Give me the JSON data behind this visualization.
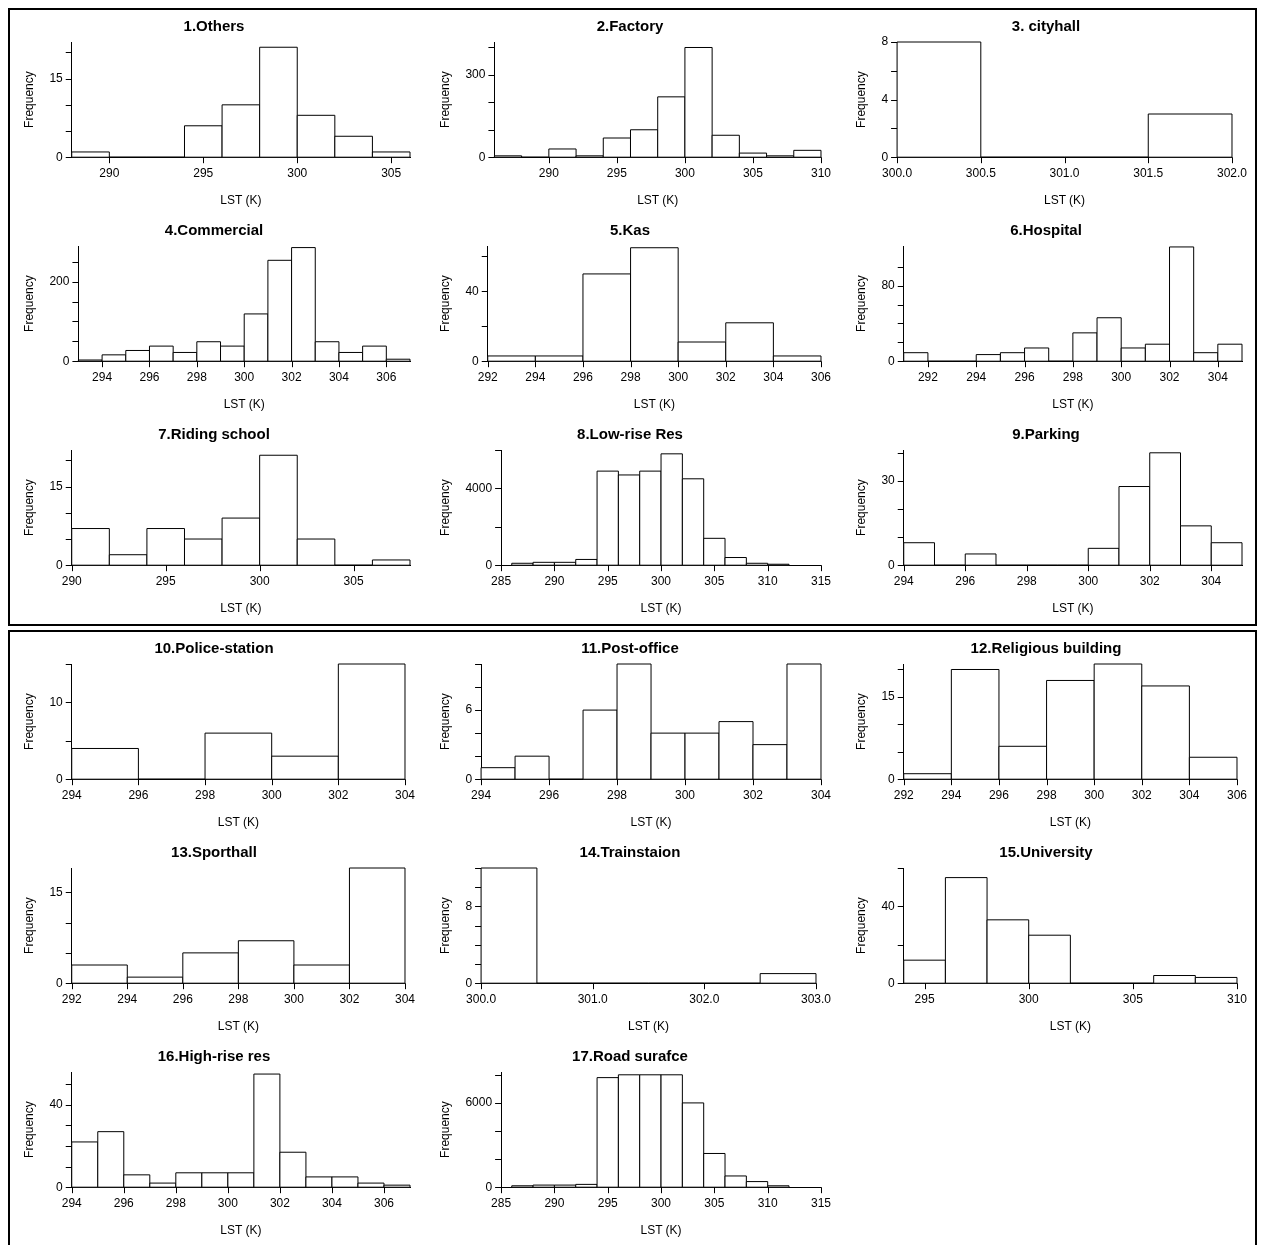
{
  "chart_data": [
    {
      "type": "histogram",
      "title": "1.Others",
      "xlabel": "LST (K)",
      "ylabel": "Frequency",
      "bins": [
        288,
        290,
        292,
        294,
        296,
        298,
        300,
        302,
        304,
        306
      ],
      "values": [
        1,
        0,
        0,
        6,
        10,
        21,
        8,
        4,
        1
      ],
      "xlim": [
        288,
        306
      ],
      "xticks": [
        290,
        295,
        300,
        305
      ],
      "ylim": [
        0,
        22
      ],
      "yticks": [
        0,
        {
          "value": 5,
          "label": null
        },
        {
          "value": 10,
          "label": null
        },
        15,
        {
          "value": 20,
          "label": null
        }
      ],
      "grid": false
    },
    {
      "type": "histogram",
      "title": "2.Factory",
      "xlabel": "LST (K)",
      "ylabel": "Frequency",
      "bins": [
        286,
        288,
        290,
        292,
        294,
        296,
        298,
        300,
        302,
        304,
        306,
        308,
        310
      ],
      "values": [
        5,
        0,
        30,
        5,
        70,
        100,
        220,
        400,
        80,
        15,
        5,
        25
      ],
      "xlim": [
        286,
        310
      ],
      "xticks": [
        290,
        295,
        300,
        305,
        310
      ],
      "ylim": [
        0,
        420
      ],
      "yticks": [
        0,
        {
          "value": 100,
          "label": null
        },
        {
          "value": 200,
          "label": null
        },
        300,
        {
          "value": 400,
          "label": null
        }
      ],
      "grid": false
    },
    {
      "type": "histogram",
      "title": "3. cityhall",
      "xlabel": "LST (K)",
      "ylabel": "Frequency",
      "bins": [
        300,
        300.5,
        301,
        301.5,
        302
      ],
      "values": [
        8,
        0,
        0,
        3
      ],
      "xlim": [
        300,
        302
      ],
      "xticks": [
        {
          "value": 300,
          "label": "300.0"
        },
        {
          "value": 300.5,
          "label": "300.5"
        },
        {
          "value": 301,
          "label": "301.0"
        },
        {
          "value": 301.5,
          "label": "301.5"
        },
        {
          "value": 302,
          "label": "302.0"
        }
      ],
      "ylim": [
        0,
        8
      ],
      "yticks": [
        0,
        {
          "value": 2,
          "label": null
        },
        4,
        {
          "value": 6,
          "label": null
        },
        8
      ],
      "grid": false
    },
    {
      "type": "histogram",
      "title": "4.Commercial",
      "xlabel": "LST (K)",
      "ylabel": "Frequency",
      "bins": [
        293,
        294,
        295,
        296,
        297,
        298,
        299,
        300,
        301,
        302,
        303,
        304,
        305,
        306,
        307
      ],
      "values": [
        3,
        16,
        27,
        38,
        22,
        49,
        38,
        119,
        254,
        286,
        49,
        22,
        38,
        5
      ],
      "xlim": [
        293,
        307
      ],
      "xticks": [
        294,
        296,
        298,
        300,
        302,
        304,
        306
      ],
      "ylim": [
        0,
        290
      ],
      "yticks": [
        0,
        {
          "value": 50,
          "label": null
        },
        {
          "value": 100,
          "label": null
        },
        {
          "value": 150,
          "label": null
        },
        200,
        {
          "value": 250,
          "label": null
        }
      ],
      "grid": false
    },
    {
      "type": "histogram",
      "title": "5.Kas",
      "xlabel": "LST (K)",
      "ylabel": "Frequency",
      "bins": [
        292,
        294,
        296,
        298,
        300,
        302,
        304,
        306
      ],
      "values": [
        3,
        3,
        50,
        65,
        11,
        22,
        3
      ],
      "xlim": [
        292,
        306
      ],
      "xticks": [
        292,
        294,
        296,
        298,
        300,
        302,
        304,
        306
      ],
      "ylim": [
        0,
        66
      ],
      "yticks": [
        0,
        {
          "value": 20,
          "label": null
        },
        40,
        {
          "value": 60,
          "label": null
        }
      ],
      "grid": false
    },
    {
      "type": "histogram",
      "title": "6.Hospital",
      "xlabel": "LST (K)",
      "ylabel": "Frequency",
      "bins": [
        291,
        292,
        293,
        294,
        295,
        296,
        297,
        298,
        299,
        300,
        301,
        302,
        303,
        304,
        305
      ],
      "values": [
        9,
        0,
        0,
        7,
        9,
        14,
        0,
        30,
        46,
        14,
        18,
        121,
        9,
        18
      ],
      "xlim": [
        291,
        305
      ],
      "xticks": [
        292,
        294,
        296,
        298,
        300,
        302,
        304
      ],
      "ylim": [
        0,
        122
      ],
      "yticks": [
        0,
        {
          "value": 20,
          "label": null
        },
        {
          "value": 40,
          "label": null
        },
        {
          "value": 60,
          "label": null
        },
        80,
        {
          "value": 100,
          "label": null
        }
      ],
      "grid": false
    },
    {
      "type": "histogram",
      "title": "7.Riding school",
      "xlabel": "LST (K)",
      "ylabel": "Frequency",
      "bins": [
        290,
        292,
        294,
        296,
        298,
        300,
        302,
        304,
        306,
        308
      ],
      "values": [
        7,
        2,
        7,
        5,
        9,
        21,
        5,
        0,
        1
      ],
      "xlim": [
        290,
        308
      ],
      "xticks": [
        290,
        295,
        300,
        305
      ],
      "ylim": [
        0,
        22
      ],
      "yticks": [
        0,
        {
          "value": 5,
          "label": null
        },
        {
          "value": 10,
          "label": null
        },
        15,
        {
          "value": 20,
          "label": null
        }
      ],
      "grid": false
    },
    {
      "type": "histogram",
      "title": "8.Low-rise Res",
      "xlabel": "LST (K)",
      "ylabel": "Frequency",
      "bins": [
        286,
        288,
        290,
        292,
        294,
        296,
        298,
        300,
        302,
        304,
        306,
        308,
        310,
        312
      ],
      "values": [
        100,
        150,
        150,
        300,
        4900,
        4700,
        4900,
        5800,
        4500,
        1400,
        400,
        100,
        50
      ],
      "xlim": [
        285,
        315
      ],
      "xticks": [
        285,
        290,
        295,
        300,
        305,
        310,
        315
      ],
      "ylim": [
        0,
        6000
      ],
      "yticks": [
        0,
        {
          "value": 2000,
          "label": null
        },
        4000,
        {
          "value": 6000,
          "label": null
        }
      ],
      "grid": false
    },
    {
      "type": "histogram",
      "title": "9.Parking",
      "xlabel": "LST (K)",
      "ylabel": "Frequency",
      "bins": [
        294,
        295,
        296,
        297,
        298,
        299,
        300,
        301,
        302,
        303,
        304,
        305
      ],
      "values": [
        8,
        0,
        4,
        0,
        0,
        0,
        6,
        28,
        40,
        14,
        8
      ],
      "xlim": [
        294,
        305
      ],
      "xticks": [
        294,
        296,
        298,
        300,
        302,
        304
      ],
      "ylim": [
        0,
        41
      ],
      "yticks": [
        0,
        {
          "value": 10,
          "label": null
        },
        {
          "value": 20,
          "label": null
        },
        30,
        {
          "value": 40,
          "label": null
        }
      ],
      "grid": false
    },
    {
      "type": "histogram",
      "title": "10.Police-station",
      "xlabel": "LST (K)",
      "ylabel": "Frequency",
      "bins": [
        294,
        296,
        298,
        300,
        302,
        304
      ],
      "values": [
        4,
        0,
        6,
        3,
        15
      ],
      "xlim": [
        294,
        304
      ],
      "xticks": [
        294,
        296,
        298,
        300,
        302,
        304
      ],
      "ylim": [
        0,
        15
      ],
      "yticks": [
        0,
        {
          "value": 5,
          "label": null
        },
        10,
        {
          "value": 15,
          "label": null
        }
      ],
      "grid": false
    },
    {
      "type": "histogram",
      "title": "11.Post-office",
      "xlabel": "LST (K)",
      "ylabel": "Frequency",
      "bins": [
        294,
        295,
        296,
        297,
        298,
        299,
        300,
        301,
        302,
        303,
        304
      ],
      "values": [
        1,
        2,
        0,
        6,
        10,
        4,
        4,
        5,
        3,
        10
      ],
      "xlim": [
        294,
        304
      ],
      "xticks": [
        294,
        296,
        298,
        300,
        302,
        304
      ],
      "ylim": [
        0,
        10
      ],
      "yticks": [
        0,
        {
          "value": 2,
          "label": null
        },
        {
          "value": 4,
          "label": null
        },
        6,
        {
          "value": 8,
          "label": null
        },
        {
          "value": 10,
          "label": null
        }
      ],
      "grid": false
    },
    {
      "type": "histogram",
      "title": "12.Religious building",
      "xlabel": "LST (K)",
      "ylabel": "Frequency",
      "bins": [
        292,
        294,
        296,
        298,
        300,
        302,
        304,
        306
      ],
      "values": [
        1,
        20,
        6,
        18,
        21,
        17,
        4
      ],
      "xlim": [
        292,
        306
      ],
      "xticks": [
        292,
        294,
        296,
        298,
        300,
        302,
        304,
        306
      ],
      "ylim": [
        0,
        21
      ],
      "yticks": [
        0,
        {
          "value": 5,
          "label": null
        },
        {
          "value": 10,
          "label": null
        },
        15,
        {
          "value": 20,
          "label": null
        }
      ],
      "grid": false
    },
    {
      "type": "histogram",
      "title": "13.Sporthall",
      "xlabel": "LST (K)",
      "ylabel": "Frequency",
      "bins": [
        292,
        294,
        296,
        298,
        300,
        302,
        304
      ],
      "values": [
        3,
        1,
        5,
        7,
        3,
        19
      ],
      "xlim": [
        292,
        304
      ],
      "xticks": [
        292,
        294,
        296,
        298,
        300,
        302,
        304
      ],
      "ylim": [
        0,
        19
      ],
      "yticks": [
        0,
        {
          "value": 5,
          "label": null
        },
        {
          "value": 10,
          "label": null
        },
        15
      ],
      "grid": false
    },
    {
      "type": "histogram",
      "title": "14.Trainstaion",
      "xlabel": "LST (K)",
      "ylabel": "Frequency",
      "bins": [
        300,
        300.5,
        301,
        301.5,
        302,
        302.5,
        303
      ],
      "values": [
        12,
        0,
        0,
        0,
        0,
        1
      ],
      "xlim": [
        300,
        303
      ],
      "xticks": [
        {
          "value": 300,
          "label": "300.0"
        },
        {
          "value": 301,
          "label": "301.0"
        },
        {
          "value": 302,
          "label": "302.0"
        },
        {
          "value": 303,
          "label": "303.0"
        }
      ],
      "ylim": [
        0,
        12
      ],
      "yticks": [
        0,
        {
          "value": 2,
          "label": null
        },
        {
          "value": 4,
          "label": null
        },
        {
          "value": 6,
          "label": null
        },
        8,
        {
          "value": 10,
          "label": null
        },
        {
          "value": 12,
          "label": null
        }
      ],
      "grid": false
    },
    {
      "type": "histogram",
      "title": "15.University",
      "xlabel": "LST (K)",
      "ylabel": "Frequency",
      "bins": [
        294,
        296,
        298,
        300,
        302,
        304,
        306,
        308,
        310
      ],
      "values": [
        12,
        55,
        33,
        25,
        0,
        0,
        4,
        3
      ],
      "xlim": [
        294,
        310
      ],
      "xticks": [
        295,
        300,
        305,
        310
      ],
      "ylim": [
        0,
        60
      ],
      "yticks": [
        0,
        {
          "value": 20,
          "label": null
        },
        40,
        {
          "value": 60,
          "label": null
        }
      ],
      "grid": false
    },
    {
      "type": "histogram",
      "title": "16.High-rise res",
      "xlabel": "LST (K)",
      "ylabel": "Frequency",
      "bins": [
        294,
        295,
        296,
        297,
        298,
        299,
        300,
        301,
        302,
        303,
        304,
        305,
        306,
        307
      ],
      "values": [
        22,
        27,
        6,
        2,
        7,
        7,
        7,
        55,
        17,
        5,
        5,
        2,
        1
      ],
      "xlim": [
        294,
        307
      ],
      "xticks": [
        294,
        296,
        298,
        300,
        302,
        304,
        306
      ],
      "ylim": [
        0,
        56
      ],
      "yticks": [
        0,
        {
          "value": 10,
          "label": null
        },
        {
          "value": 20,
          "label": null
        },
        {
          "value": 30,
          "label": null
        },
        40,
        {
          "value": 50,
          "label": null
        }
      ],
      "grid": false
    },
    {
      "type": "histogram",
      "title": "17.Road surafce",
      "xlabel": "LST (K)",
      "ylabel": "Frequency",
      "bins": [
        286,
        288,
        290,
        292,
        294,
        296,
        298,
        300,
        302,
        304,
        306,
        308,
        310,
        312
      ],
      "values": [
        100,
        150,
        150,
        200,
        7800,
        8000,
        8000,
        8000,
        6000,
        2400,
        800,
        400,
        100
      ],
      "xlim": [
        285,
        315
      ],
      "xticks": [
        285,
        290,
        295,
        300,
        305,
        310,
        315
      ],
      "ylim": [
        0,
        8200
      ],
      "yticks": [
        0,
        {
          "value": 2000,
          "label": null
        },
        {
          "value": 4000,
          "label": null
        },
        6000,
        {
          "value": 8000,
          "label": null
        }
      ],
      "grid": false
    }
  ]
}
